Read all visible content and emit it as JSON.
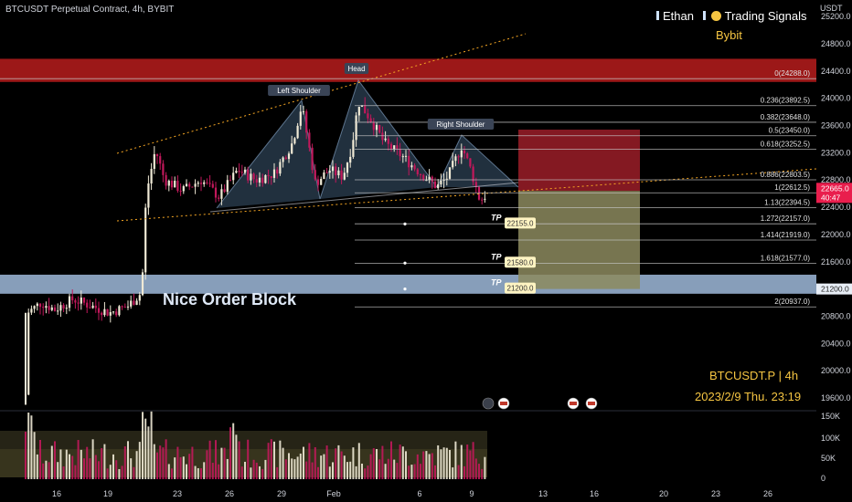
{
  "header": {
    "symbol_line": "BTCUSDT Perpetual Contract, 4h, BYBIT",
    "author": "Ethan",
    "channel": "Trading Signals",
    "exchange": "Bybit",
    "currency": "USDT"
  },
  "colors": {
    "bg": "#000000",
    "up": "#f0ead6",
    "down": "#c2185b",
    "supply_zone": "#b71c1c",
    "order_block": "#a9c6e8",
    "stop_zone": "#8b1a24",
    "target_zone": "#8c8a5e",
    "gold": "#f5c542",
    "trendline": "#f5a623"
  },
  "chart_data": {
    "type": "candlestick",
    "symbol": "BTCUSDT.P | 4h",
    "timestamp": "2023/2/9 Thu. 23:19",
    "y_axis": {
      "ticks": [
        "25200.0",
        "24800.0",
        "24400.0",
        "24000.0",
        "23600.0",
        "23200.0",
        "22800.0",
        "22400.0",
        "22000.0",
        "21600.0",
        "21200.0",
        "20800.0",
        "20400.0",
        "20000.0",
        "19600.0"
      ],
      "range": [
        19450,
        25250
      ]
    },
    "x_axis": {
      "ticks": [
        "16",
        "19",
        "23",
        "26",
        "29",
        "Feb",
        "6",
        "9",
        "13",
        "16",
        "20",
        "23",
        "26"
      ]
    },
    "last_price": "22665.0",
    "countdown": "40:47",
    "order_block_price": "21200.0",
    "fib_levels": [
      {
        "label": "0(24288.0)",
        "price": 24288.0
      },
      {
        "label": "0.236(23892.5)",
        "price": 23892.5
      },
      {
        "label": "0.382(23648.0)",
        "price": 23648.0
      },
      {
        "label": "0.5(23450.0)",
        "price": 23450.0
      },
      {
        "label": "0.618(23252.5)",
        "price": 23252.5
      },
      {
        "label": "0.886(22803.5)",
        "price": 22803.5
      },
      {
        "label": "1(22612.5)",
        "price": 22612.5
      },
      {
        "label": "1.13(22394.5)",
        "price": 22394.5
      },
      {
        "label": "1.272(22157.0)",
        "price": 22157.0
      },
      {
        "label": "1.414(21919.0)",
        "price": 21919.0
      },
      {
        "label": "1.618(21577.0)",
        "price": 21577.0
      },
      {
        "label": "2(20937.0)",
        "price": 20937.0
      }
    ],
    "targets": [
      {
        "tag": "TP",
        "price_label": "22155.0",
        "price": 22155.0
      },
      {
        "tag": "TP",
        "price_label": "21580.0",
        "price": 21580.0
      },
      {
        "tag": "TP",
        "price_label": "21200.0",
        "price": 21200.0
      }
    ],
    "pattern_labels": {
      "left": "Left Shoulder",
      "head": "Head",
      "right": "Right Shoulder"
    },
    "order_block_label": "Nice Order Block",
    "volume_axis": {
      "ticks": [
        "150K",
        "100K",
        "50K",
        "0"
      ]
    }
  }
}
